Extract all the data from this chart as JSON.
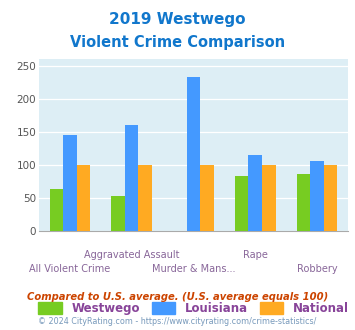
{
  "title_line1": "2019 Westwego",
  "title_line2": "Violent Crime Comparison",
  "categories": [
    "All Violent Crime",
    "Aggravated Assault",
    "Murder & Mans...",
    "Rape",
    "Robbery"
  ],
  "westwego": [
    64,
    53,
    0,
    83,
    87
  ],
  "louisiana": [
    146,
    161,
    234,
    115,
    106
  ],
  "national": [
    100,
    100,
    100,
    100,
    100
  ],
  "colors": {
    "westwego": "#77cc22",
    "louisiana": "#4499ff",
    "national": "#ffaa22"
  },
  "ylim": [
    0,
    260
  ],
  "yticks": [
    0,
    50,
    100,
    150,
    200,
    250
  ],
  "plot_bg": "#ddeef5",
  "title_color": "#1177cc",
  "footer_text": "Compared to U.S. average. (U.S. average equals 100)",
  "footer2_text": "© 2024 CityRating.com - https://www.cityrating.com/crime-statistics/",
  "footer_color": "#cc4400",
  "footer2_color": "#7799bb",
  "legend_labels": [
    "Westwego",
    "Louisiana",
    "National"
  ],
  "legend_text_color": "#884499",
  "xlabel_color": "#886699",
  "bar_width": 0.22
}
